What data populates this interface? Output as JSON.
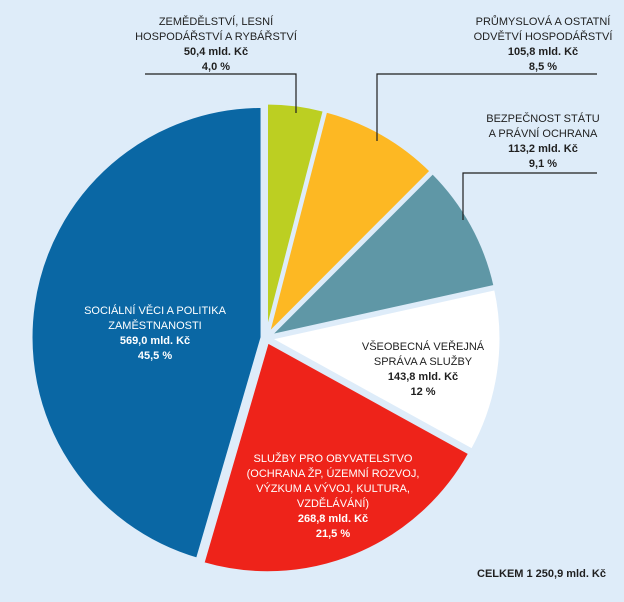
{
  "chart_data": {
    "type": "pie",
    "unit": "mld. Kč",
    "total_label": "CELKEM 1 250,9 mld. Kč",
    "total": 1250.9,
    "slices": [
      {
        "name": "zemedelstvi",
        "label1": "ZEMĚDĚLSTVÍ, LESNÍ",
        "label2": "HOSPODÁŘSTVÍ A RYBÁŘSTVÍ",
        "value": 50.4,
        "value_label": "50,4 mld. Kč",
        "pct_label": "4,0 %",
        "color": "#bccf22"
      },
      {
        "name": "prumysl",
        "label1": "PRŮMYSLOVÁ A OSTATNÍ",
        "label2": "ODVĚTVÍ HOSPODÁŘSTVÍ",
        "value": 105.8,
        "value_label": "105,8 mld. Kč",
        "pct_label": "8,5 %",
        "color": "#fdb823"
      },
      {
        "name": "bezpecnost",
        "label1": "BEZPEČNOST STÁTU",
        "label2": "A PRÁVNÍ OCHRANA",
        "value": 113.2,
        "value_label": "113,2  mld. Kč",
        "pct_label": "9,1 %",
        "color": "#5f97a6"
      },
      {
        "name": "sprava",
        "label1": "VŠEOBECNÁ VEŘEJNÁ",
        "label2": "SPRÁVA A SLUŽBY",
        "value": 143.8,
        "value_label": "143,8  mld. Kč",
        "pct_label": "12 %",
        "color": "#ffffff"
      },
      {
        "name": "sluzby",
        "label1": "SLUŽBY PRO OBYVATELSTVO",
        "label2": "(OCHRANA ŽP, ÚZEMNÍ ROZVOJ,",
        "label3": "VÝZKUM A VÝVOJ, KULTURA,",
        "label4": "VZDĚLÁVÁNÍ)",
        "value": 268.8,
        "value_label": "268,8 mld. Kč",
        "pct_label": "21,5 %",
        "color": "#ee231a"
      },
      {
        "name": "socialni",
        "label1": "SOCIÁLNÍ VĚCI A POLITIKA",
        "label2": "ZAMĚSTNANOSTI",
        "value": 569.0,
        "value_label": "569,0 mld. Kč",
        "pct_label": "45,5 %",
        "color": "#0a67a4"
      }
    ]
  }
}
